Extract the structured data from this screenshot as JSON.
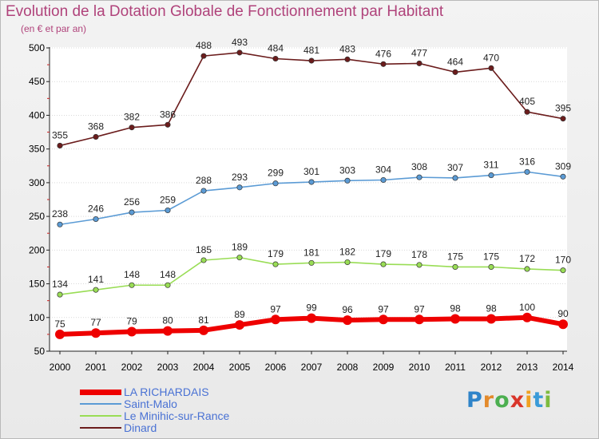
{
  "header": {
    "title": "Evolution de la Dotation Globale de Fonctionnement par Habitant",
    "subtitle": "(en € et par an)"
  },
  "logo": {
    "text": "Proxiti"
  },
  "chart_data": {
    "type": "line",
    "title": "Evolution de la Dotation Globale de Fonctionnement par Habitant",
    "subtitle": "(en € et par an)",
    "xlabel": "",
    "ylabel": "",
    "x": [
      "2000",
      "2001",
      "2002",
      "2003",
      "2004",
      "2005",
      "2006",
      "2007",
      "2008",
      "2009",
      "2010",
      "2011",
      "2012",
      "2013",
      "2014"
    ],
    "ylim": [
      50,
      500
    ],
    "yticks": [
      50,
      100,
      150,
      200,
      250,
      300,
      350,
      400,
      450,
      500
    ],
    "legend_position": "bottom-left",
    "series": [
      {
        "name": "LA RICHARDAIS",
        "color": "#ee0000",
        "values": [
          75,
          77,
          79,
          80,
          81,
          89,
          97,
          99,
          96,
          97,
          97,
          98,
          98,
          100,
          90
        ]
      },
      {
        "name": "Saint-Malo",
        "color": "#5b9bd5",
        "values": [
          238,
          246,
          256,
          259,
          288,
          293,
          299,
          301,
          303,
          304,
          308,
          307,
          311,
          316,
          309
        ]
      },
      {
        "name": "Le Minihic-sur-Rance",
        "color": "#99dd55",
        "values": [
          134,
          141,
          148,
          148,
          185,
          189,
          179,
          181,
          182,
          179,
          178,
          175,
          175,
          172,
          170
        ]
      },
      {
        "name": "Dinard",
        "color": "#6b1c1c",
        "values": [
          355,
          368,
          382,
          386,
          488,
          493,
          484,
          481,
          483,
          476,
          477,
          464,
          470,
          405,
          395
        ]
      }
    ]
  }
}
